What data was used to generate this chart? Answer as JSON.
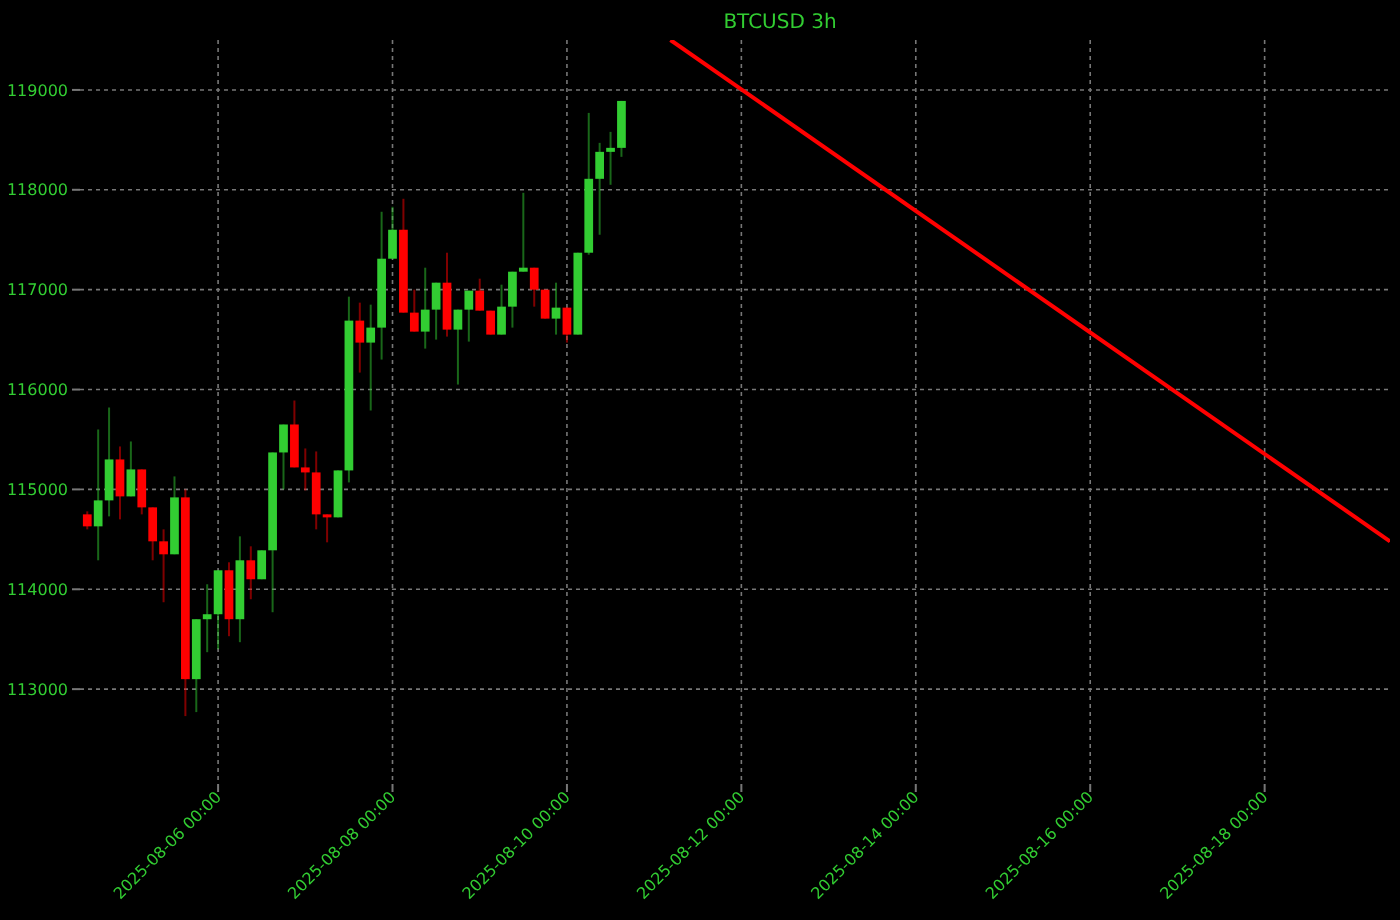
{
  "chart_data": {
    "type": "candlestick",
    "title": "BTCUSD 3h",
    "x": [
      "2025-08-04T12:00",
      "2025-08-04T15:00",
      "2025-08-04T18:00",
      "2025-08-04T21:00",
      "2025-08-05T00:00",
      "2025-08-05T03:00",
      "2025-08-05T06:00",
      "2025-08-05T09:00",
      "2025-08-05T12:00",
      "2025-08-05T15:00",
      "2025-08-05T18:00",
      "2025-08-05T21:00",
      "2025-08-06T00:00",
      "2025-08-06T03:00",
      "2025-08-06T06:00",
      "2025-08-06T09:00",
      "2025-08-06T12:00",
      "2025-08-06T15:00",
      "2025-08-06T18:00",
      "2025-08-06T21:00",
      "2025-08-07T00:00",
      "2025-08-07T03:00",
      "2025-08-07T06:00",
      "2025-08-07T09:00",
      "2025-08-07T12:00",
      "2025-08-07T15:00",
      "2025-08-07T18:00",
      "2025-08-07T21:00",
      "2025-08-08T00:00",
      "2025-08-08T03:00",
      "2025-08-08T06:00",
      "2025-08-08T09:00",
      "2025-08-08T12:00",
      "2025-08-08T15:00",
      "2025-08-08T18:00",
      "2025-08-08T21:00",
      "2025-08-09T00:00",
      "2025-08-09T03:00",
      "2025-08-09T06:00",
      "2025-08-09T09:00",
      "2025-08-09T12:00",
      "2025-08-09T15:00",
      "2025-08-09T18:00",
      "2025-08-09T21:00",
      "2025-08-10T00:00",
      "2025-08-10T03:00",
      "2025-08-10T06:00",
      "2025-08-10T09:00",
      "2025-08-10T12:00",
      "2025-08-10T15:00"
    ],
    "ohlc": [
      [
        114750,
        114780,
        114600,
        114630
      ],
      [
        114630,
        115600,
        114290,
        114890
      ],
      [
        114890,
        115820,
        114730,
        115300
      ],
      [
        115300,
        115430,
        114700,
        114930
      ],
      [
        114930,
        115480,
        114930,
        115200
      ],
      [
        115200,
        115200,
        114750,
        114820
      ],
      [
        114820,
        114820,
        114290,
        114480
      ],
      [
        114480,
        114600,
        113870,
        114350
      ],
      [
        114350,
        115130,
        114350,
        114920
      ],
      [
        114920,
        115000,
        112730,
        113100
      ],
      [
        113100,
        113700,
        112770,
        113700
      ],
      [
        113700,
        114050,
        113370,
        113750
      ],
      [
        113750,
        114190,
        113400,
        114190
      ],
      [
        114190,
        114270,
        113530,
        113700
      ],
      [
        113700,
        114530,
        113470,
        114290
      ],
      [
        114290,
        114430,
        113900,
        114100
      ],
      [
        114100,
        114390,
        114100,
        114390
      ],
      [
        114390,
        115370,
        113770,
        115370
      ],
      [
        115370,
        115650,
        115000,
        115650
      ],
      [
        115650,
        115890,
        115220,
        115220
      ],
      [
        115220,
        115410,
        114990,
        115170
      ],
      [
        115170,
        115380,
        114600,
        114750
      ],
      [
        114750,
        114750,
        114470,
        114720
      ],
      [
        114720,
        115190,
        114720,
        115190
      ],
      [
        115190,
        116930,
        115070,
        116690
      ],
      [
        116690,
        116870,
        116170,
        116470
      ],
      [
        116470,
        116850,
        115790,
        116620
      ],
      [
        116620,
        117780,
        116300,
        117310
      ],
      [
        117310,
        117830,
        117310,
        117600
      ],
      [
        117600,
        117910,
        116770,
        116770
      ],
      [
        116770,
        117000,
        116580,
        116580
      ],
      [
        116580,
        117220,
        116410,
        116800
      ],
      [
        116800,
        117070,
        116500,
        117070
      ],
      [
        117070,
        117370,
        116530,
        116600
      ],
      [
        116600,
        116800,
        116050,
        116800
      ],
      [
        116800,
        116990,
        116480,
        116990
      ],
      [
        116990,
        117110,
        116790,
        116790
      ],
      [
        116790,
        116790,
        116550,
        116550
      ],
      [
        116550,
        117050,
        116550,
        116830
      ],
      [
        116830,
        117180,
        116620,
        117180
      ],
      [
        117180,
        117970,
        117180,
        117220
      ],
      [
        117220,
        117220,
        116830,
        117000
      ],
      [
        117000,
        117000,
        116710,
        116710
      ],
      [
        116710,
        117070,
        116550,
        116820
      ],
      [
        116820,
        116820,
        116470,
        116550
      ],
      [
        116550,
        117370,
        116550,
        117370
      ],
      [
        117370,
        118770,
        117350,
        118110
      ],
      [
        118110,
        118470,
        117550,
        118380
      ],
      [
        118380,
        118580,
        118050,
        118420
      ],
      [
        118420,
        118890,
        118330,
        118890
      ]
    ],
    "colors": [
      "#ff0000",
      "#32cd32",
      "#32cd32",
      "#ff0000",
      "#32cd32",
      "#ff0000",
      "#ff0000",
      "#ff0000",
      "#32cd32",
      "#ff0000",
      "#32cd32",
      "#32cd32",
      "#32cd32",
      "#ff0000",
      "#32cd32",
      "#ff0000",
      "#32cd32",
      "#32cd32",
      "#32cd32",
      "#ff0000",
      "#ff0000",
      "#ff0000",
      "#ff0000",
      "#32cd32",
      "#32cd32",
      "#ff0000",
      "#32cd32",
      "#32cd32",
      "#32cd32",
      "#ff0000",
      "#ff0000",
      "#32cd32",
      "#32cd32",
      "#ff0000",
      "#32cd32",
      "#32cd32",
      "#ff0000",
      "#ff0000",
      "#32cd32",
      "#32cd32",
      "#32cd32",
      "#ff0000",
      "#ff0000",
      "#32cd32",
      "#ff0000",
      "#32cd32",
      "#32cd32",
      "#32cd32",
      "#32cd32",
      "#32cd32"
    ],
    "series": [
      {
        "type": "line",
        "color": "#ff0000",
        "x": [
          "2025-08-11T04:30",
          "2025-08-19T10:30"
        ],
        "values": [
          119500,
          114480
        ]
      }
    ],
    "xlim": [
      "2025-08-04T10:00",
      "2025-08-19T10:30"
    ],
    "xticks": [
      {
        "value": "2025-08-06",
        "label": "2025-08-06 00:00"
      },
      {
        "value": "2025-08-08",
        "label": "2025-08-08 00:00"
      },
      {
        "value": "2025-08-10",
        "label": "2025-08-10 00:00"
      },
      {
        "value": "2025-08-12",
        "label": "2025-08-12 00:00"
      },
      {
        "value": "2025-08-14",
        "label": "2025-08-14 00:00"
      },
      {
        "value": "2025-08-16",
        "label": "2025-08-16 00:00"
      },
      {
        "value": "2025-08-18",
        "label": "2025-08-18 00:00"
      }
    ],
    "ylim": [
      112050,
      119500
    ],
    "yticks": [
      113000,
      114000,
      115000,
      116000,
      117000,
      118000,
      119000
    ],
    "grid": true
  }
}
